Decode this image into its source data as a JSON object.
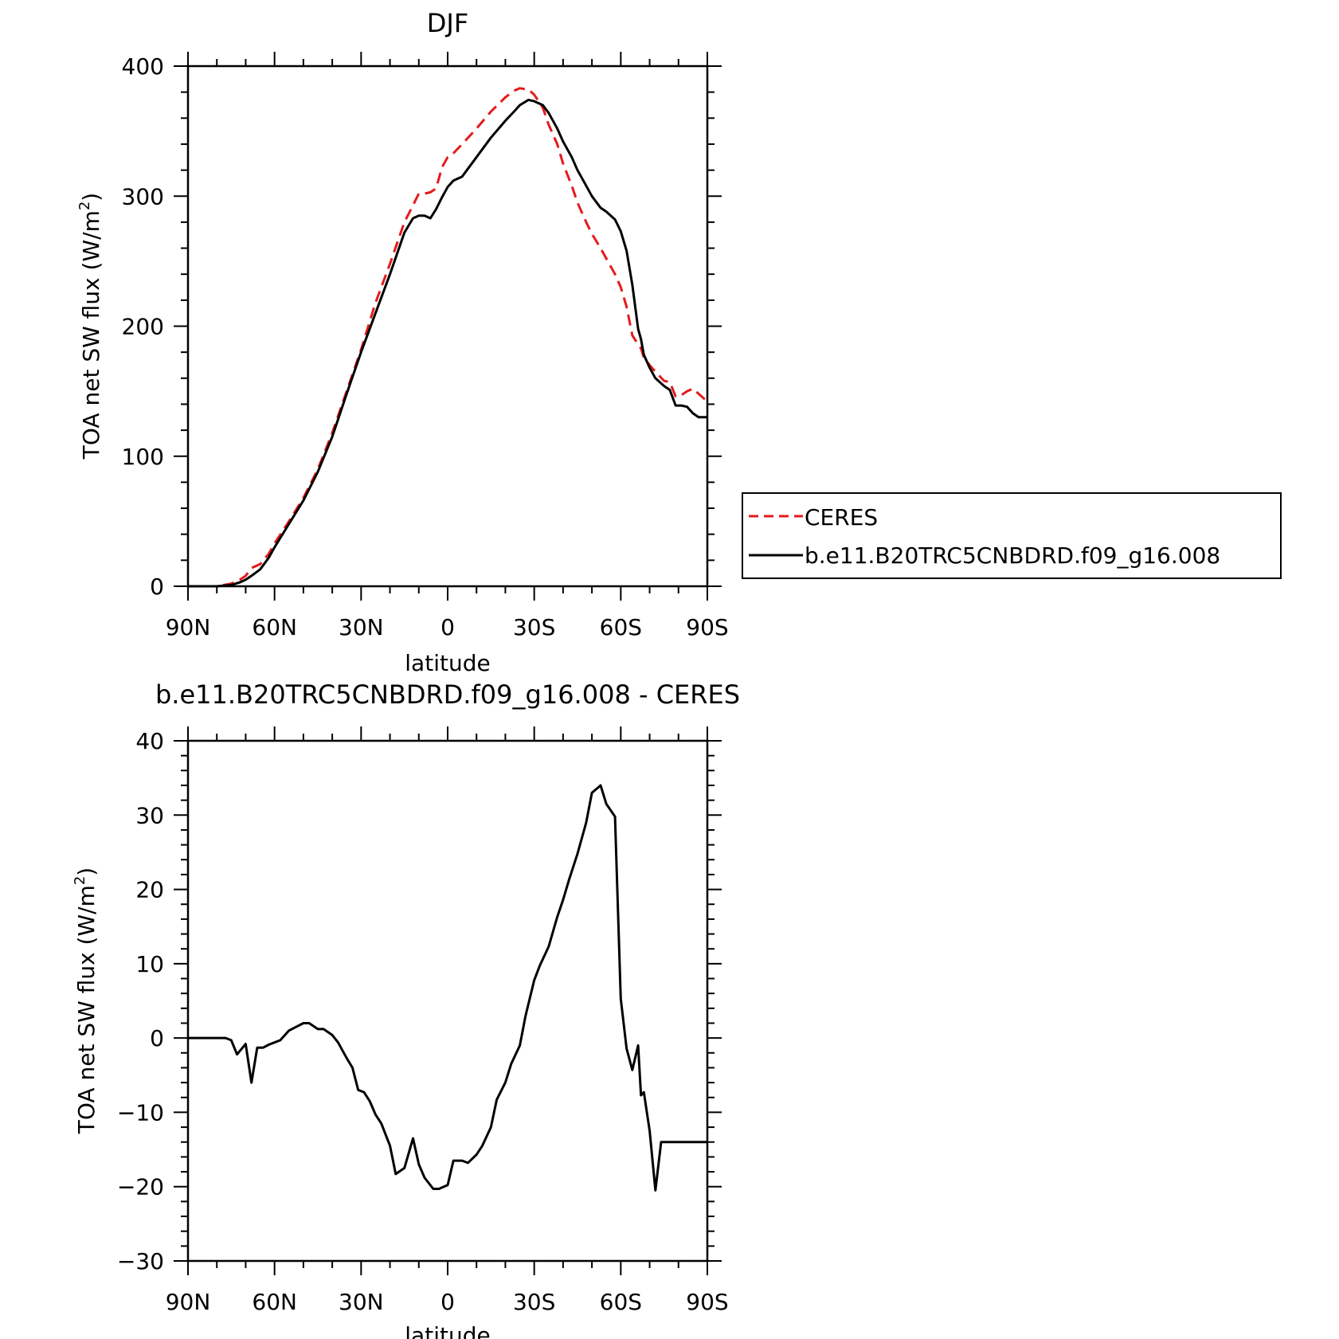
{
  "chart_data": [
    {
      "type": "line",
      "title": "DJF",
      "xlabel": "latitude",
      "ylabel": "TOA net SW flux (W/m",
      "ylabel_sup": "2",
      "ylabel_close": ")",
      "xlim": [
        -90,
        90
      ],
      "ylim": [
        0,
        400
      ],
      "x_ticks": [
        -90,
        -60,
        -30,
        0,
        30,
        60,
        90
      ],
      "x_tick_labels": [
        "90N",
        "60N",
        "30N",
        "0",
        "30S",
        "60S",
        "90S"
      ],
      "y_ticks": [
        0,
        100,
        200,
        300,
        400
      ],
      "y_tick_labels": [
        "0",
        "100",
        "200",
        "300",
        "400"
      ],
      "legend_position": "right",
      "series": [
        {
          "name": "CERES",
          "color": "#e41a1c",
          "dash": "dashed",
          "x": [
            -90,
            -80,
            -75,
            -72,
            -70,
            -68,
            -65,
            -62,
            -60,
            -55,
            -50,
            -45,
            -40,
            -35,
            -30,
            -25,
            -20,
            -15,
            -12,
            -10,
            -8,
            -6,
            -4,
            -2,
            0,
            2,
            5,
            10,
            15,
            20,
            23,
            25,
            28,
            30,
            33,
            35,
            38,
            40,
            43,
            45,
            48,
            50,
            53,
            55,
            58,
            60,
            62,
            64,
            66,
            67,
            68,
            70,
            72,
            75,
            77,
            79,
            81,
            83,
            85,
            87,
            90
          ],
          "y": [
            0,
            0,
            2,
            5,
            8,
            14,
            17,
            25,
            33,
            50,
            68,
            90,
            118,
            150,
            182,
            218,
            248,
            280,
            293,
            302,
            302,
            303,
            306,
            322,
            330,
            333,
            340,
            352,
            365,
            376,
            381,
            383,
            382,
            378,
            368,
            355,
            340,
            325,
            308,
            295,
            280,
            271,
            260,
            252,
            240,
            230,
            215,
            193,
            186,
            183,
            176,
            170,
            165,
            158,
            157,
            146,
            147,
            150,
            152,
            148,
            142
          ]
        },
        {
          "name": "b.e11.B20TRC5CNBDRD.f09_g16.008",
          "color": "#000000",
          "dash": "solid",
          "x": [
            -90,
            -80,
            -75,
            -72,
            -70,
            -68,
            -65,
            -62,
            -60,
            -55,
            -50,
            -45,
            -40,
            -35,
            -30,
            -25,
            -20,
            -15,
            -12,
            -10,
            -8,
            -6,
            -4,
            -2,
            0,
            2,
            5,
            10,
            15,
            20,
            23,
            25,
            28,
            30,
            33,
            35,
            38,
            40,
            43,
            45,
            48,
            50,
            53,
            55,
            58,
            60,
            62,
            64,
            66,
            67,
            68,
            70,
            72,
            75,
            77,
            79,
            81,
            83,
            85,
            87,
            90
          ],
          "y": [
            0,
            0,
            1,
            3,
            5,
            8,
            13,
            22,
            30,
            48,
            66,
            88,
            115,
            148,
            180,
            210,
            240,
            272,
            283,
            285,
            285,
            283,
            290,
            299,
            307,
            312,
            315,
            330,
            345,
            358,
            365,
            370,
            374,
            373,
            370,
            364,
            352,
            342,
            330,
            320,
            308,
            300,
            291,
            288,
            282,
            273,
            258,
            232,
            198,
            190,
            178,
            168,
            160,
            154,
            151,
            139,
            139,
            138,
            133,
            130,
            130
          ]
        }
      ]
    },
    {
      "type": "line",
      "title": "b.e11.B20TRC5CNBDRD.f09_g16.008 - CERES",
      "xlabel": "latitude",
      "ylabel": "TOA net SW flux (W/m",
      "ylabel_sup": "2",
      "ylabel_close": ")",
      "xlim": [
        -90,
        90
      ],
      "ylim": [
        -30,
        40
      ],
      "x_ticks": [
        -90,
        -60,
        -30,
        0,
        30,
        60,
        90
      ],
      "x_tick_labels": [
        "90N",
        "60N",
        "30N",
        "0",
        "30S",
        "60S",
        "90S"
      ],
      "y_ticks": [
        -30,
        -20,
        -10,
        0,
        10,
        20,
        30,
        40
      ],
      "y_tick_labels": [
        "−30",
        "−20",
        "−10",
        "0",
        "10",
        "20",
        "30",
        "40"
      ],
      "series": [
        {
          "color": "#000000",
          "dash": "solid",
          "x": [
            -90,
            -85,
            -80,
            -77,
            -75,
            -73,
            -70,
            -68,
            -66,
            -64,
            -62,
            -60,
            -58,
            -55,
            -53,
            -50,
            -48,
            -45,
            -43,
            -40,
            -38,
            -35,
            -33,
            -31,
            -29,
            -27,
            -25,
            -23,
            -20,
            -18,
            -15,
            -12,
            -10,
            -8,
            -5,
            -3,
            0,
            2,
            5,
            7,
            10,
            12,
            15,
            17,
            20,
            22,
            25,
            27,
            30,
            32,
            35,
            38,
            40,
            42,
            45,
            48,
            50,
            53,
            55,
            58,
            60,
            62,
            64,
            66,
            67,
            68,
            70,
            72,
            74,
            76,
            78,
            80,
            82,
            84,
            86,
            88,
            90
          ],
          "y": [
            0,
            0,
            0,
            0,
            -0.3,
            -2.2,
            -0.8,
            -6,
            -1.3,
            -1.3,
            -0.9,
            -0.6,
            -0.3,
            1.0,
            1.4,
            2.0,
            2.0,
            1.2,
            1.2,
            0.4,
            -0.6,
            -2.7,
            -4.0,
            -7.0,
            -7.3,
            -8.5,
            -10.3,
            -11.5,
            -14.5,
            -18.3,
            -17.5,
            -13.5,
            -17.0,
            -18.8,
            -20.3,
            -20.3,
            -19.8,
            -16.5,
            -16.5,
            -16.8,
            -15.7,
            -14.5,
            -12.0,
            -8.3,
            -6.0,
            -3.5,
            -1.0,
            3.0,
            7.8,
            9.8,
            12.3,
            16.3,
            18.6,
            21.2,
            24.8,
            29.0,
            33.0,
            34.0,
            31.5,
            29.8,
            5.3,
            -1.4,
            -4.3,
            -1.0,
            -7.7,
            -7.3,
            -12.5,
            -20.5,
            -14.0,
            -14.0,
            -14.0,
            -14.0,
            -14.0,
            -14.0,
            -14.0,
            -14.0,
            -14.0
          ]
        }
      ]
    }
  ]
}
